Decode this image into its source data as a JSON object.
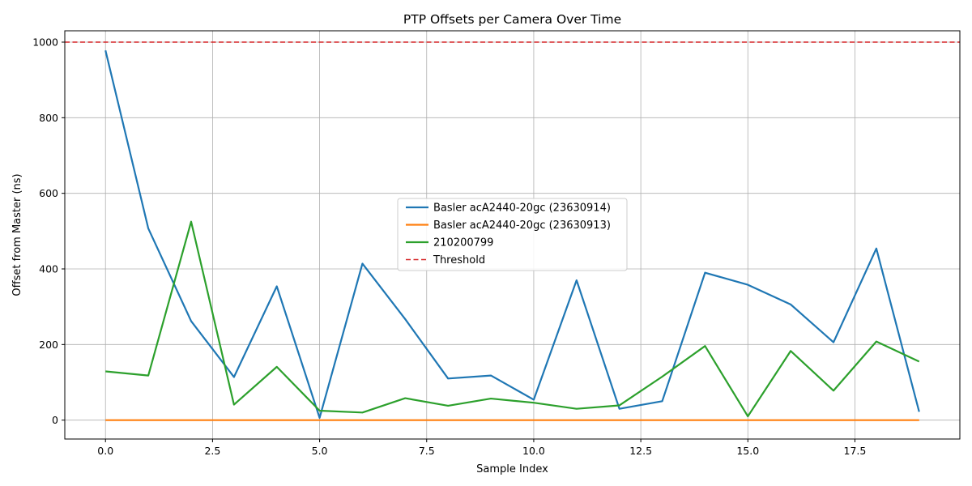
{
  "chart_data": {
    "type": "line",
    "title": "PTP Offsets per Camera Over Time",
    "xlabel": "Sample Index",
    "ylabel": "Offset from Master (ns)",
    "xlim": [
      -0.95,
      19.95
    ],
    "ylim": [
      -50,
      1030
    ],
    "xticks": [
      0.0,
      2.5,
      5.0,
      7.5,
      10.0,
      12.5,
      15.0,
      17.5
    ],
    "xtick_labels": [
      "0.0",
      "2.5",
      "5.0",
      "7.5",
      "10.0",
      "12.5",
      "15.0",
      "17.5"
    ],
    "yticks": [
      0,
      200,
      400,
      600,
      800,
      1000
    ],
    "ytick_labels": [
      "0",
      "200",
      "400",
      "600",
      "800",
      "1000"
    ],
    "grid": true,
    "legend_position": "center",
    "x": [
      0,
      1,
      2,
      3,
      4,
      5,
      6,
      7,
      8,
      9,
      10,
      11,
      12,
      13,
      14,
      15,
      16,
      17,
      18,
      19
    ],
    "series": [
      {
        "name": "Basler acA2440-20gc (23630914)",
        "color": "#1f77b4",
        "values": [
          978,
          507,
          262,
          114,
          354,
          6,
          414,
          267,
          110,
          118,
          54,
          370,
          30,
          50,
          390,
          358,
          306,
          206,
          454,
          22
        ]
      },
      {
        "name": "Basler acA2440-20gc (23630913)",
        "color": "#ff7f0e",
        "values": [
          0,
          0,
          0,
          0,
          0,
          0,
          0,
          0,
          0,
          0,
          0,
          0,
          0,
          0,
          0,
          0,
          0,
          0,
          0,
          0
        ]
      },
      {
        "name": "210200799",
        "color": "#2ca02c",
        "values": [
          129,
          118,
          525,
          41,
          141,
          25,
          20,
          58,
          38,
          57,
          46,
          30,
          39,
          115,
          196,
          10,
          183,
          78,
          208,
          155
        ]
      }
    ],
    "threshold": {
      "name": "Threshold",
      "value": 1000,
      "color": "#d62728"
    }
  }
}
